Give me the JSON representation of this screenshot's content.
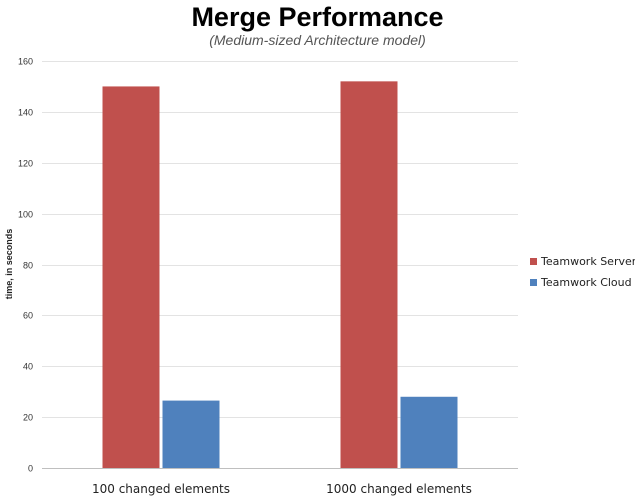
{
  "chart_data": {
    "type": "bar",
    "title": "Merge Performance",
    "subtitle": "(Medium-sized Architecture model)",
    "xlabel": "",
    "ylabel": "time, in seconds",
    "categories": [
      "100 changed elements",
      "1000 changed elements"
    ],
    "series": [
      {
        "name": "Teamwork Server",
        "color": "#c0504d",
        "values": [
          150,
          152
        ]
      },
      {
        "name": "Teamwork Cloud",
        "color": "#4f81bd",
        "values": [
          26.5,
          28
        ]
      }
    ],
    "ylim": [
      0,
      160
    ],
    "yticks": [
      0,
      20,
      40,
      60,
      80,
      100,
      120,
      140,
      160
    ],
    "grid": true,
    "legend": "right"
  }
}
